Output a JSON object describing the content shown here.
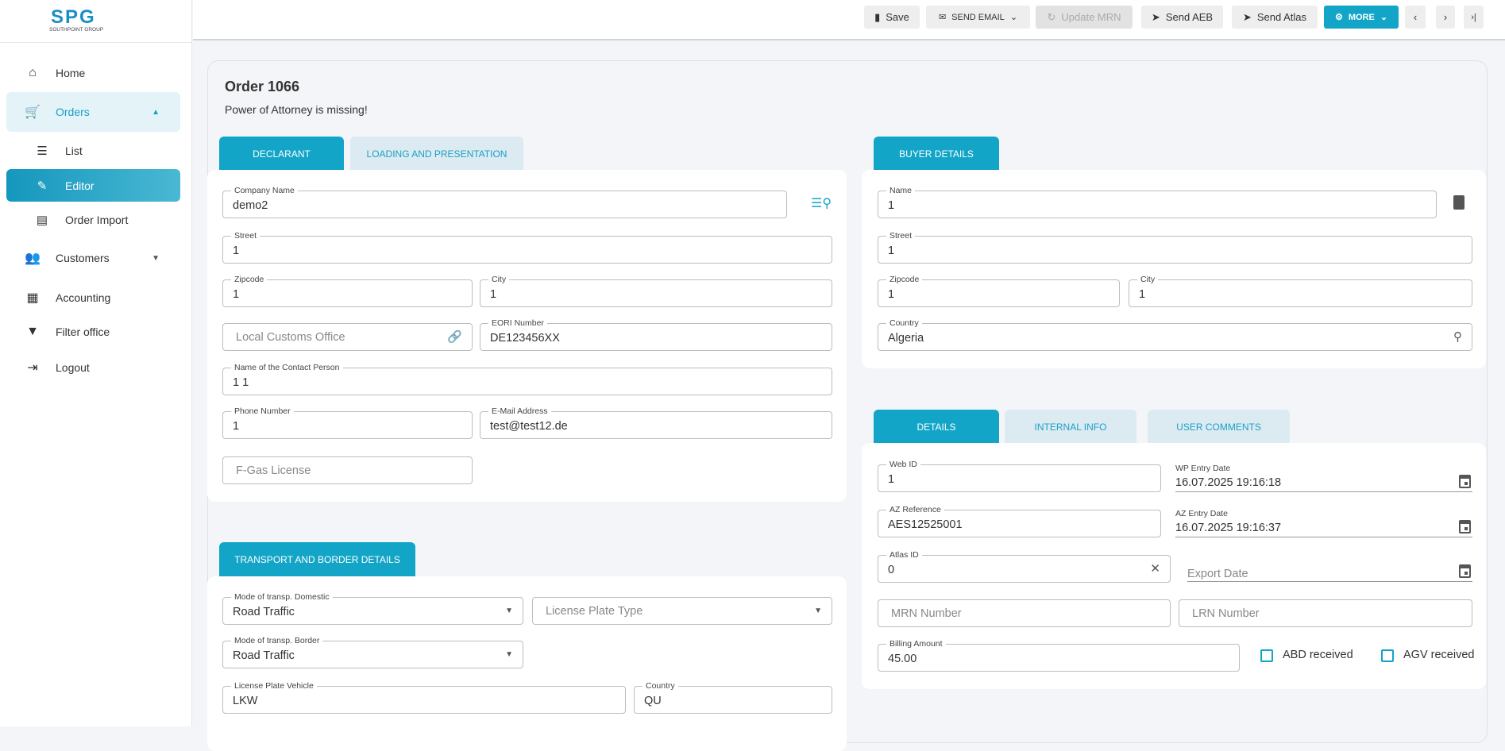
{
  "brand": {
    "logo_text": "SPG",
    "logo_sub": "SOUTHPOINT GROUP",
    "accent": "#12a5c7"
  },
  "sidebar": {
    "items": [
      {
        "label": "Home",
        "icon": "home-icon"
      },
      {
        "label": "Orders",
        "icon": "cart-plus-icon",
        "expanded": true
      },
      {
        "label": "List",
        "icon": "list-icon"
      },
      {
        "label": "Editor",
        "icon": "edit-notes-icon",
        "active": true
      },
      {
        "label": "Order Import",
        "icon": "table-icon"
      },
      {
        "label": "Customers",
        "icon": "people-icon"
      },
      {
        "label": "Accounting",
        "icon": "cash-register-icon"
      },
      {
        "label": "Filter office",
        "icon": "filter-icon"
      },
      {
        "label": "Logout",
        "icon": "logout-icon"
      }
    ]
  },
  "toolbar": {
    "save": "Save",
    "send_email": "SEND EMAIL",
    "update_mrn": "Update MRN",
    "send_aeb": "Send AEB",
    "send_atlas": "Send Atlas",
    "more": "MORE",
    "prev": "‹",
    "next": "›",
    "last": "›|"
  },
  "order": {
    "title": "Order 1066",
    "warning": "Power of Attorney is missing!"
  },
  "left_tabs": [
    "DECLARANT",
    "LOADING AND PRESENTATION"
  ],
  "declarant": {
    "company_name": {
      "label": "Company Name",
      "value": "demo2"
    },
    "street": {
      "label": "Street",
      "value": "1"
    },
    "zipcode": {
      "label": "Zipcode",
      "value": "1"
    },
    "city": {
      "label": "City",
      "value": "1"
    },
    "local_customs": {
      "placeholder": "Local Customs Office"
    },
    "eori": {
      "label": "EORI Number",
      "value": "DE123456XX"
    },
    "contact": {
      "label": "Name of the Contact Person",
      "value": "1 1"
    },
    "phone": {
      "label": "Phone Number",
      "value": "1"
    },
    "email": {
      "label": "E-Mail Address",
      "value": "test@test12.de"
    },
    "fgas": {
      "placeholder": "F-Gas License"
    }
  },
  "transport_tab": "TRANSPORT AND BORDER DETAILS",
  "transport": {
    "mode_domestic": {
      "label": "Mode of transp. Domestic",
      "value": "Road Traffic"
    },
    "plate_type": {
      "placeholder": "License Plate Type"
    },
    "mode_border": {
      "label": "Mode of transp. Border",
      "value": "Road Traffic"
    },
    "plate_vehicle": {
      "label": "License Plate Vehicle",
      "value": "LKW"
    },
    "country": {
      "label": "Country",
      "value": "QU"
    }
  },
  "buyer_tab": "BUYER DETAILS",
  "buyer": {
    "name": {
      "label": "Name",
      "value": "1"
    },
    "street": {
      "label": "Street",
      "value": "1"
    },
    "zipcode": {
      "label": "Zipcode",
      "value": "1"
    },
    "city": {
      "label": "City",
      "value": "1"
    },
    "country": {
      "label": "Country",
      "value": "Algeria"
    }
  },
  "detail_tabs": [
    "DETAILS",
    "INTERNAL INFO",
    "USER COMMENTS"
  ],
  "details": {
    "web_id": {
      "label": "Web ID",
      "value": "1"
    },
    "wp_entry": {
      "label": "WP Entry Date",
      "value": "16.07.2025 19:16:18"
    },
    "az_ref": {
      "label": "AZ Reference",
      "value": "AES12525001"
    },
    "az_entry": {
      "label": "AZ Entry Date",
      "value": "16.07.2025 19:16:37"
    },
    "atlas_id": {
      "label": "Atlas ID",
      "value": "0"
    },
    "export_date": {
      "placeholder": "Export Date"
    },
    "mrn": {
      "placeholder": "MRN Number"
    },
    "lrn": {
      "placeholder": "LRN Number"
    },
    "billing": {
      "label": "Billing Amount",
      "value": "45.00"
    },
    "abd": {
      "label": "ABD received",
      "checked": false
    },
    "agv": {
      "label": "AGV received",
      "checked": false
    }
  }
}
